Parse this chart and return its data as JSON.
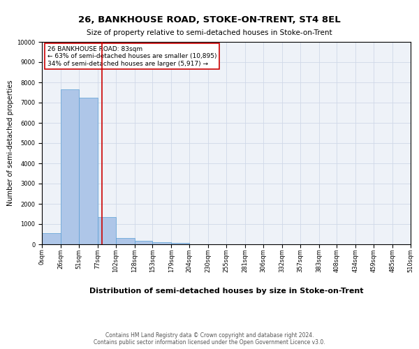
{
  "title": "26, BANKHOUSE ROAD, STOKE-ON-TRENT, ST4 8EL",
  "subtitle": "Size of property relative to semi-detached houses in Stoke-on-Trent",
  "xlabel": "Distribution of semi-detached houses by size in Stoke-on-Trent",
  "ylabel": "Number of semi-detached properties",
  "footer_line1": "Contains HM Land Registry data © Crown copyright and database right 2024.",
  "footer_line2": "Contains public sector information licensed under the Open Government Licence v3.0.",
  "annotation_title": "26 BANKHOUSE ROAD: 83sqm",
  "annotation_line1": "← 63% of semi-detached houses are smaller (10,895)",
  "annotation_line2": "34% of semi-detached houses are larger (5,917) →",
  "property_size": 83,
  "bin_edges": [
    0,
    26,
    51,
    77,
    102,
    128,
    153,
    179,
    204,
    230,
    255,
    281,
    306,
    332,
    357,
    383,
    408,
    434,
    459,
    485,
    510
  ],
  "bar_heights": [
    550,
    7650,
    7250,
    1350,
    300,
    175,
    100,
    75,
    0,
    0,
    0,
    0,
    0,
    0,
    0,
    0,
    0,
    0,
    0,
    0
  ],
  "bar_color": "#aec6e8",
  "bar_edge_color": "#5a9fd4",
  "vline_color": "#cc0000",
  "vline_x": 83,
  "ylim": [
    0,
    10000
  ],
  "yticks": [
    0,
    1000,
    2000,
    3000,
    4000,
    5000,
    6000,
    7000,
    8000,
    9000,
    10000
  ],
  "grid_color": "#d0d8e8",
  "background_color": "#eef2f8",
  "title_fontsize": 9.5,
  "subtitle_fontsize": 7.5,
  "xlabel_fontsize": 8,
  "ylabel_fontsize": 7,
  "tick_fontsize": 6,
  "footer_fontsize": 5.5,
  "annotation_fontsize": 6.5
}
